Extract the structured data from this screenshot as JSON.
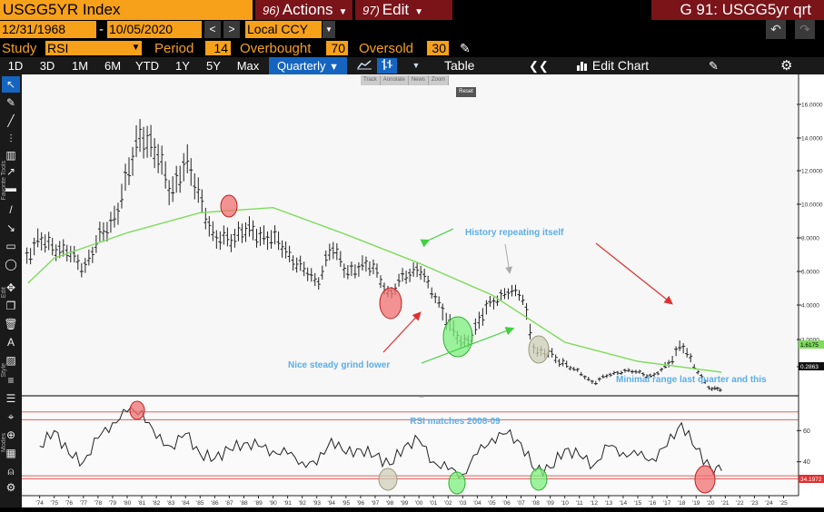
{
  "header": {
    "ticker": "USGG5YR Index",
    "actions": {
      "num": "96)",
      "label": "Actions"
    },
    "edit": {
      "num": "97)",
      "label": "Edit"
    },
    "function_title": "G 91: USGG5yr qrt"
  },
  "params": {
    "start_date": "12/31/1968",
    "dash": "-",
    "end_date": "10/05/2020",
    "currency": "Local CCY",
    "study_label": "Study",
    "study_value": "RSI",
    "period_label": "Period",
    "period_value": "14",
    "overbought_label": "Overbought",
    "overbought_value": "70",
    "oversold_label": "Oversold",
    "oversold_value": "30"
  },
  "ranges": [
    "1D",
    "3D",
    "1M",
    "6M",
    "YTD",
    "1Y",
    "5Y",
    "Max"
  ],
  "periodicity": "Quarterly",
  "toolbar": {
    "table_label": "Table",
    "edit_chart_label": "Edit Chart"
  },
  "float_toolbar": {
    "items": [
      "Track",
      "Annotate",
      "News",
      "Zoom"
    ],
    "reset": "Reset"
  },
  "side_labels": {
    "favorites": "Favorite Tools",
    "edit": "Edit",
    "style": "Style",
    "modes": "Modes"
  },
  "annotations": {
    "history": "History repeating itself",
    "grind": "Nice steady grind lower",
    "minimal": "Minimal range last quarter and this",
    "rsi": "RSI matches 2008-09"
  },
  "colors": {
    "accent": "#f7a11a",
    "menu": "#7a1419",
    "selected": "#1565c0",
    "ma_line": "#7ddc5a",
    "annotation_text": "#5aaee8",
    "arrow_red": "#e03030",
    "arrow_green": "#40d040"
  },
  "chart_data": [
    {
      "type": "bar",
      "subtype": "ohlc-quarterly",
      "title": "",
      "y_axis_labels": [
        "16.0000",
        "14.0000",
        "12.0000",
        "10.0000",
        "8.0000",
        "6.0000",
        "4.0000",
        "3.0000",
        "2.0000"
      ],
      "ylim": [
        0,
        17
      ],
      "price_tag": "0.2863",
      "ma_tag": "1.6175",
      "series": [
        {
          "name": "USGG5YR close",
          "x": [
            1969,
            1970,
            1971,
            1972,
            1973,
            1974,
            1975,
            1976,
            1977,
            1978,
            1979,
            1980,
            1981,
            1982,
            1983,
            1984,
            1985,
            1986,
            1987,
            1988,
            1989,
            1990,
            1991,
            1992,
            1993,
            1994,
            1995,
            1996,
            1997,
            1998,
            1999,
            2000,
            2001,
            2002,
            2003,
            2004,
            2005,
            2006,
            2007,
            2008,
            2009,
            2010,
            2011,
            2012,
            2013,
            2014,
            2015,
            2016,
            2017,
            2018,
            2019,
            2020,
            2020.75
          ],
          "values": [
            7.5,
            7.8,
            6.2,
            6.0,
            6.9,
            7.8,
            7.5,
            7.1,
            6.2,
            7.8,
            9.0,
            11.5,
            14.5,
            13.0,
            10.8,
            12.5,
            10.5,
            7.8,
            8.0,
            8.4,
            8.2,
            8.0,
            7.1,
            6.2,
            5.3,
            7.5,
            6.0,
            6.3,
            6.2,
            4.5,
            5.8,
            6.2,
            4.6,
            3.5,
            2.8,
            3.4,
            4.2,
            4.8,
            4.6,
            2.5,
            2.5,
            2.1,
            1.6,
            0.8,
            1.4,
            1.7,
            1.6,
            1.3,
            2.0,
            2.9,
            1.8,
            0.4,
            0.29
          ]
        },
        {
          "name": "Moving average",
          "x": [
            1969,
            1975,
            1980,
            1985,
            1990,
            1995,
            2000,
            2005,
            2010,
            2015,
            2020.75
          ],
          "values": [
            5.3,
            6.8,
            8.3,
            9.5,
            9.8,
            8.2,
            6.5,
            4.6,
            2.9,
            2.2,
            1.6
          ]
        }
      ]
    },
    {
      "type": "line",
      "title": "",
      "y_axis_labels": [
        "60",
        "40"
      ],
      "ylim": [
        20,
        80
      ],
      "value_tag": "34.1972",
      "overbought_line": 70,
      "oversold_line": 30,
      "x_tick_labels": [
        "'74",
        "'75",
        "'76",
        "'77",
        "'78",
        "'79",
        "'80",
        "'81",
        "'82",
        "'83",
        "'84",
        "'85",
        "'86",
        "'87",
        "'88",
        "'89",
        "'90",
        "'91",
        "'92",
        "'93",
        "'94",
        "'95",
        "'96",
        "'97",
        "'98",
        "'99",
        "'00",
        "'01",
        "'02",
        "'03",
        "'04",
        "'05",
        "'06",
        "'07",
        "'08",
        "'09",
        "'10",
        "'11",
        "'12",
        "'13",
        "'14",
        "'15",
        "'16",
        "'17",
        "'18",
        "'19",
        "'20",
        "'21",
        "'22",
        "'23",
        "'24",
        "'25"
      ],
      "series": [
        {
          "name": "RSI",
          "x": [
            1974,
            1975,
            1976,
            1977,
            1978,
            1979,
            1980,
            1981,
            1982,
            1983,
            1984,
            1985,
            1986,
            1987,
            1988,
            1989,
            1990,
            1991,
            1992,
            1993,
            1994,
            1995,
            1996,
            1997,
            1998,
            1999,
            2000,
            2001,
            2002,
            2003,
            2004,
            2005,
            2006,
            2007,
            2008,
            2009,
            2010,
            2011,
            2012,
            2013,
            2014,
            2015,
            2016,
            2017,
            2018,
            2019,
            2020,
            2020.75
          ],
          "values": [
            50,
            60,
            45,
            40,
            55,
            65,
            72,
            73,
            55,
            50,
            58,
            45,
            42,
            48,
            52,
            50,
            47,
            45,
            40,
            38,
            55,
            45,
            48,
            44,
            38,
            50,
            54,
            40,
            35,
            32,
            45,
            55,
            58,
            52,
            34,
            36,
            48,
            44,
            38,
            50,
            46,
            44,
            42,
            50,
            65,
            48,
            36,
            34.2
          ]
        }
      ]
    }
  ]
}
